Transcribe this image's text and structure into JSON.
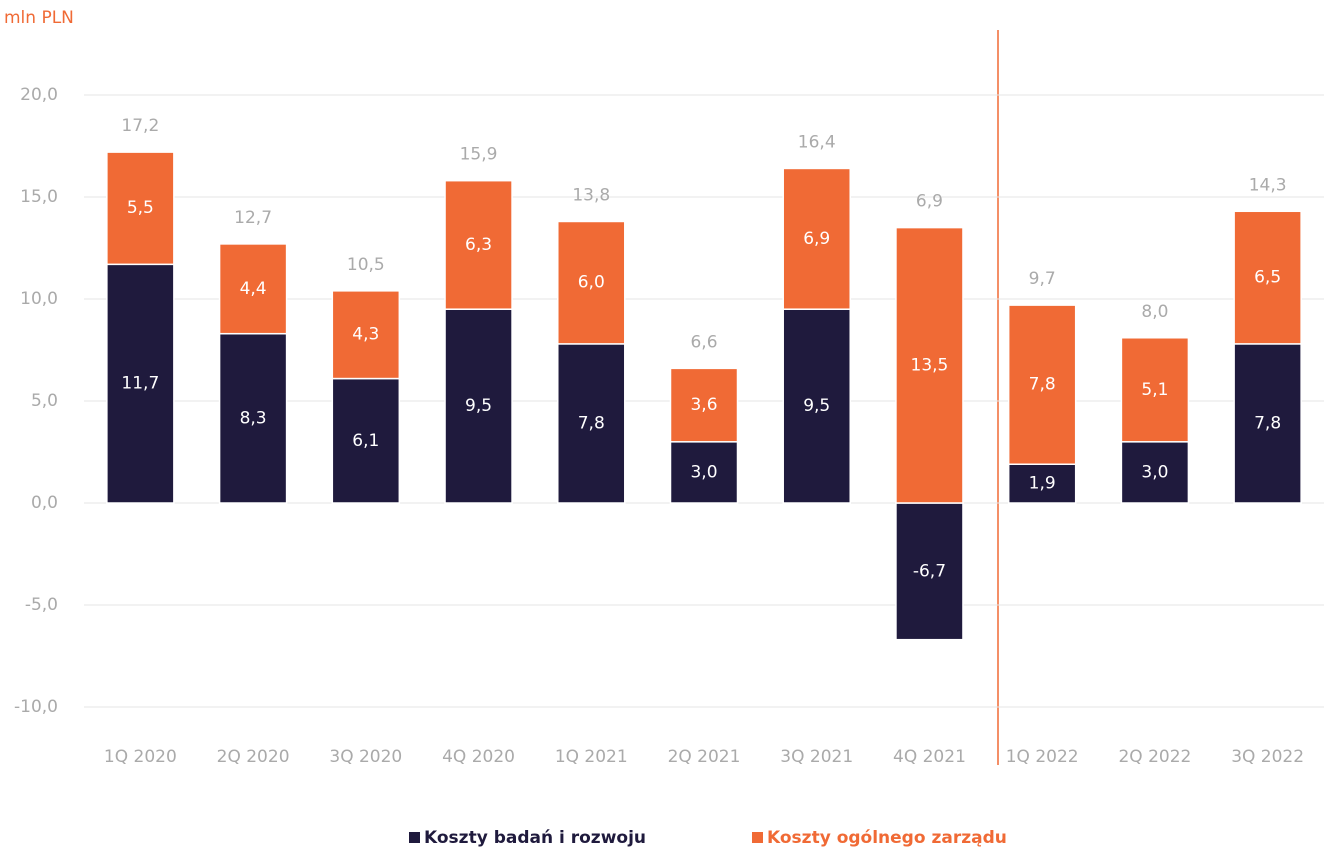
{
  "chart_data": {
    "type": "stacked-bar",
    "y_axis_label": "mln PLN",
    "categories": [
      "1Q 2020",
      "2Q 2020",
      "3Q 2020",
      "4Q 2020",
      "1Q 2021",
      "2Q 2021",
      "3Q 2021",
      "4Q 2021",
      "1Q 2022",
      "2Q 2022",
      "3Q 2022"
    ],
    "series": [
      {
        "name": "Koszty badań i rozwoju",
        "color": "#1f1a3d",
        "values": [
          11.7,
          8.3,
          6.1,
          9.5,
          7.8,
          3.0,
          9.5,
          -6.7,
          1.9,
          3.0,
          7.8
        ],
        "value_labels": [
          "11,7",
          "8,3",
          "6,1",
          "9,5",
          "7,8",
          "3,0",
          "9,5",
          "-6,7",
          "1,9",
          "3,0",
          "7,8"
        ]
      },
      {
        "name": "Koszty ogólnego zarządu",
        "color": "#f06a35",
        "values": [
          5.5,
          4.4,
          4.3,
          6.3,
          6.0,
          3.6,
          6.9,
          13.5,
          7.8,
          5.1,
          6.5
        ],
        "value_labels": [
          "5,5",
          "4,4",
          "4,3",
          "6,3",
          "6,0",
          "3,6",
          "6,9",
          "13,5",
          "7,8",
          "5,1",
          "6,5"
        ]
      }
    ],
    "totals": [
      17.2,
      12.7,
      10.5,
      15.9,
      13.8,
      6.6,
      16.4,
      6.9,
      9.7,
      8.0,
      14.3
    ],
    "total_labels": [
      "17,2",
      "12,7",
      "10,5",
      "15,9",
      "13,8",
      "6,6",
      "16,4",
      "6,9",
      "9,7",
      "8,0",
      "14,3"
    ],
    "ylim": [
      -10,
      20
    ],
    "yticks": [
      {
        "value": -10,
        "label": "-10,0"
      },
      {
        "value": -5,
        "label": "-5,0"
      },
      {
        "value": 0,
        "label": "0,0"
      },
      {
        "value": 5,
        "label": "5,0"
      },
      {
        "value": 10,
        "label": "10,0"
      },
      {
        "value": 15,
        "label": "15,0"
      },
      {
        "value": 20,
        "label": "20,0"
      }
    ],
    "grid": true,
    "legend": "bottom"
  }
}
